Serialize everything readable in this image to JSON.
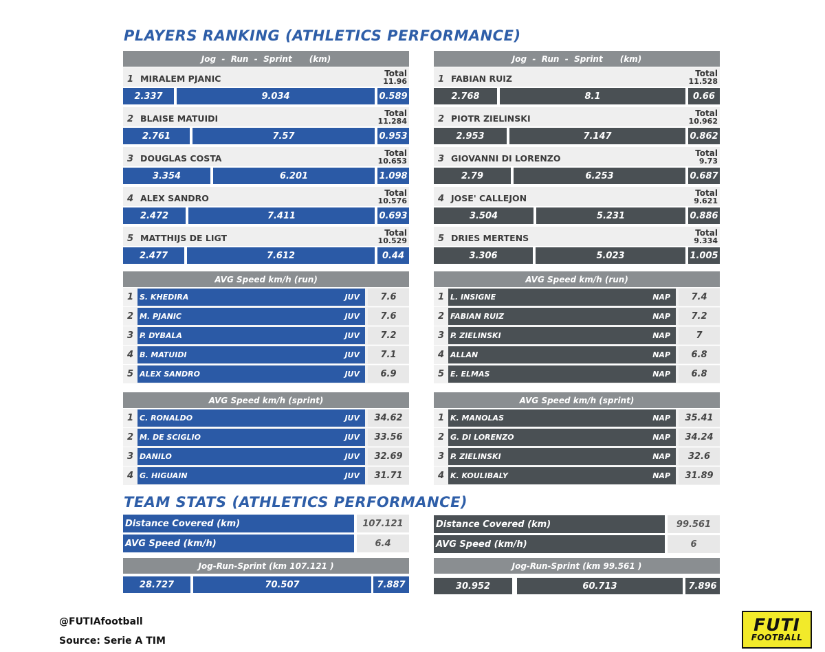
{
  "title_players": "PLAYERS RANKING (ATHLETICS PERFORMANCE)",
  "title_team": "TEAM STATS (ATHLETICS PERFORMANCE)",
  "colors": {
    "juv": "#2b5aa6",
    "nap": "#4a5054",
    "header": "#8a8e91"
  },
  "jrs_header": "Jog  -  Run  -  Sprint      (km)",
  "total_label": "Total",
  "jrs": {
    "juv": [
      {
        "rank": "1",
        "name": "MIRALEM PJANIC",
        "total": "11.96",
        "jog": "2.337",
        "run": "9.034",
        "sprint": "0.589"
      },
      {
        "rank": "2",
        "name": "BLAISE MATUIDI",
        "total": "11.284",
        "jog": "2.761",
        "run": "7.57",
        "sprint": "0.953"
      },
      {
        "rank": "3",
        "name": "DOUGLAS COSTA",
        "total": "10.653",
        "jog": "3.354",
        "run": "6.201",
        "sprint": "1.098"
      },
      {
        "rank": "4",
        "name": "ALEX SANDRO",
        "total": "10.576",
        "jog": "2.472",
        "run": "7.411",
        "sprint": "0.693"
      },
      {
        "rank": "5",
        "name": "MATTHIJS DE LIGT",
        "total": "10.529",
        "jog": "2.477",
        "run": "7.612",
        "sprint": "0.44"
      }
    ],
    "nap": [
      {
        "rank": "1",
        "name": "FABIAN RUIZ",
        "total": "11.528",
        "jog": "2.768",
        "run": "8.1",
        "sprint": "0.66"
      },
      {
        "rank": "2",
        "name": "PIOTR ZIELINSKI",
        "total": "10.962",
        "jog": "2.953",
        "run": "7.147",
        "sprint": "0.862"
      },
      {
        "rank": "3",
        "name": "GIOVANNI DI LORENZO",
        "total": "9.73",
        "jog": "2.79",
        "run": "6.253",
        "sprint": "0.687"
      },
      {
        "rank": "4",
        "name": "JOSE' CALLEJON",
        "total": "9.621",
        "jog": "3.504",
        "run": "5.231",
        "sprint": "0.886"
      },
      {
        "rank": "5",
        "name": "DRIES MERTENS",
        "total": "9.334",
        "jog": "3.306",
        "run": "5.023",
        "sprint": "1.005"
      }
    ]
  },
  "run_header": "AVG Speed km/h (run)",
  "run": {
    "juv": [
      {
        "rank": "1",
        "name": "S. KHEDIRA",
        "team": "JUV",
        "value": "7.6"
      },
      {
        "rank": "2",
        "name": "M. PJANIC",
        "team": "JUV",
        "value": "7.6"
      },
      {
        "rank": "3",
        "name": "P. DYBALA",
        "team": "JUV",
        "value": "7.2"
      },
      {
        "rank": "4",
        "name": "B. MATUIDI",
        "team": "JUV",
        "value": "7.1"
      },
      {
        "rank": "5",
        "name": "ALEX SANDRO",
        "team": "JUV",
        "value": "6.9"
      }
    ],
    "nap": [
      {
        "rank": "1",
        "name": "L. INSIGNE",
        "team": "NAP",
        "value": "7.4"
      },
      {
        "rank": "2",
        "name": "FABIAN RUIZ",
        "team": "NAP",
        "value": "7.2"
      },
      {
        "rank": "3",
        "name": "P. ZIELINSKI",
        "team": "NAP",
        "value": "7"
      },
      {
        "rank": "4",
        "name": "ALLAN",
        "team": "NAP",
        "value": "6.8"
      },
      {
        "rank": "5",
        "name": "E. ELMAS",
        "team": "NAP",
        "value": "6.8"
      }
    ]
  },
  "sprint_header": "AVG Speed km/h (sprint)",
  "sprint": {
    "juv": [
      {
        "rank": "1",
        "name": "C. RONALDO",
        "team": "JUV",
        "value": "34.62"
      },
      {
        "rank": "2",
        "name": "M. DE SCIGLIO",
        "team": "JUV",
        "value": "33.56"
      },
      {
        "rank": "3",
        "name": "DANILO",
        "team": "JUV",
        "value": "32.69"
      },
      {
        "rank": "4",
        "name": "G. HIGUAIN",
        "team": "JUV",
        "value": "31.71"
      }
    ],
    "nap": [
      {
        "rank": "1",
        "name": "K. MANOLAS",
        "team": "NAP",
        "value": "35.41"
      },
      {
        "rank": "2",
        "name": "G. DI LORENZO",
        "team": "NAP",
        "value": "34.24"
      },
      {
        "rank": "3",
        "name": "P. ZIELINSKI",
        "team": "NAP",
        "value": "32.6"
      },
      {
        "rank": "4",
        "name": "K. KOULIBALY",
        "team": "NAP",
        "value": "31.89"
      }
    ]
  },
  "team": {
    "distance_label": "Distance Covered (km)",
    "speed_label": "AVG Speed (km/h)",
    "juv": {
      "distance": "107.121",
      "speed": "6.4",
      "jrs_header": "Jog-Run-Sprint (km 107.121 )",
      "jog": "28.727",
      "run": "70.507",
      "sprint": "7.887"
    },
    "nap": {
      "distance": "99.561",
      "speed": "6",
      "jrs_header": "Jog-Run-Sprint (km 99.561 )",
      "jog": "30.952",
      "run": "60.713",
      "sprint": "7.896"
    }
  },
  "footer": {
    "handle": "@FUTIAfootball",
    "source": "Source: Serie A TIM"
  },
  "logo": {
    "line1": "FUTI",
    "line2": "FOOTBALL"
  },
  "chart_data": [
    {
      "type": "table",
      "title": "Jog - Run - Sprint (km)",
      "series": [
        {
          "name": "JUV",
          "rows": [
            [
              "MIRALEM PJANIC",
              2.337,
              9.034,
              0.589,
              11.96
            ],
            [
              "BLAISE MATUIDI",
              2.761,
              7.57,
              0.953,
              11.284
            ],
            [
              "DOUGLAS COSTA",
              3.354,
              6.201,
              1.098,
              10.653
            ],
            [
              "ALEX SANDRO",
              2.472,
              7.411,
              0.693,
              10.576
            ],
            [
              "MATTHIJS DE LIGT",
              2.477,
              7.612,
              0.44,
              10.529
            ]
          ]
        },
        {
          "name": "NAP",
          "rows": [
            [
              "FABIAN RUIZ",
              2.768,
              8.1,
              0.66,
              11.528
            ],
            [
              "PIOTR ZIELINSKI",
              2.953,
              7.147,
              0.862,
              10.962
            ],
            [
              "GIOVANNI DI LORENZO",
              2.79,
              6.253,
              0.687,
              9.73
            ],
            [
              "JOSE' CALLEJON",
              3.504,
              5.231,
              0.886,
              9.621
            ],
            [
              "DRIES MERTENS",
              3.306,
              5.023,
              1.005,
              9.334
            ]
          ]
        }
      ]
    },
    {
      "type": "table",
      "title": "AVG Speed km/h (run)"
    },
    {
      "type": "table",
      "title": "AVG Speed km/h (sprint)"
    },
    {
      "type": "table",
      "title": "TEAM STATS (ATHLETICS PERFORMANCE)"
    }
  ]
}
